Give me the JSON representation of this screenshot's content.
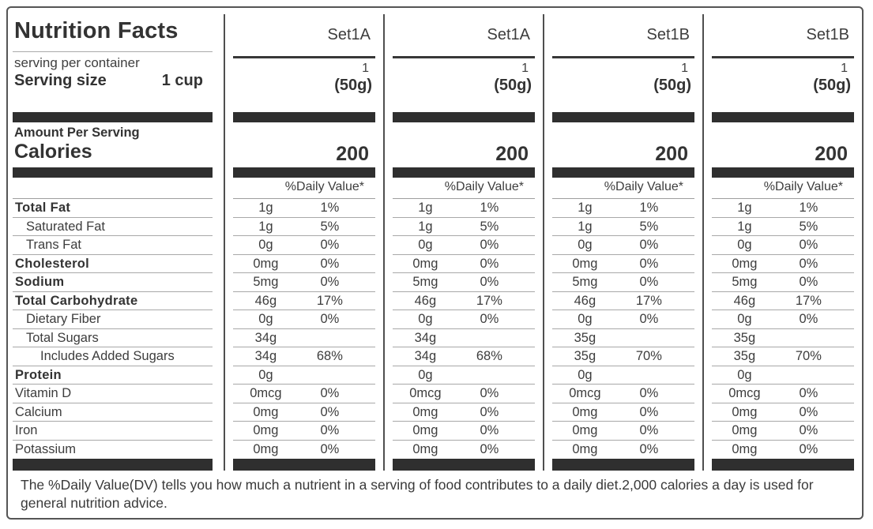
{
  "panel": {
    "title": "Nutrition Facts",
    "serving_per_container_label": "serving per container",
    "serving_size_label": "Serving size",
    "serving_size_value": "1 cup",
    "amount_per_serving_label": "Amount Per Serving",
    "calories_label": "Calories",
    "daily_value_header": "%Daily Value*",
    "footer": "The %Daily Value(DV) tells you how much a nutrient in a serving of food contributes to a daily diet.2,000 calories a day is used for general nutrition advice."
  },
  "colors": {
    "bar": "#2f2f2f",
    "rule": "#9e9e9e",
    "text": "#3a3a3a"
  },
  "nutrients": [
    {
      "label": "Total Fat",
      "emphasis": true,
      "indent": 0
    },
    {
      "label": "Saturated Fat",
      "emphasis": false,
      "indent": 1
    },
    {
      "label": "Trans Fat",
      "emphasis": false,
      "indent": 1
    },
    {
      "label": "Cholesterol",
      "emphasis": true,
      "indent": 0
    },
    {
      "label": "Sodium",
      "emphasis": true,
      "indent": 0
    },
    {
      "label": "Total Carbohydrate",
      "emphasis": true,
      "indent": 0
    },
    {
      "label": "Dietary Fiber",
      "emphasis": false,
      "indent": 1
    },
    {
      "label": "Total Sugars",
      "emphasis": false,
      "indent": 1
    },
    {
      "label": "Includes Added Sugars",
      "emphasis": false,
      "indent": 2
    },
    {
      "label": "Protein",
      "emphasis": true,
      "indent": 0
    },
    {
      "label": "Vitamin D",
      "emphasis": false,
      "indent": 0
    },
    {
      "label": "Calcium",
      "emphasis": false,
      "indent": 0
    },
    {
      "label": "Iron",
      "emphasis": false,
      "indent": 0
    },
    {
      "label": "Potassium",
      "emphasis": false,
      "indent": 0
    }
  ],
  "columns": [
    {
      "name": "Set1A",
      "servings_per_container": "1",
      "serving_size": "(50g)",
      "calories": "200",
      "daily_value_header": "%Daily Value*",
      "values": [
        [
          "1g",
          "1%"
        ],
        [
          "1g",
          "5%"
        ],
        [
          "0g",
          "0%"
        ],
        [
          "0mg",
          "0%"
        ],
        [
          "5mg",
          "0%"
        ],
        [
          "46g",
          "17%"
        ],
        [
          "0g",
          "0%"
        ],
        [
          "34g",
          ""
        ],
        [
          "34g",
          "68%"
        ],
        [
          "0g",
          ""
        ],
        [
          "0mcg",
          "0%"
        ],
        [
          "0mg",
          "0%"
        ],
        [
          "0mg",
          "0%"
        ],
        [
          "0mg",
          "0%"
        ]
      ]
    },
    {
      "name": "Set1A",
      "servings_per_container": "1",
      "serving_size": "(50g)",
      "calories": "200",
      "daily_value_header": "%Daily Value*",
      "values": [
        [
          "1g",
          "1%"
        ],
        [
          "1g",
          "5%"
        ],
        [
          "0g",
          "0%"
        ],
        [
          "0mg",
          "0%"
        ],
        [
          "5mg",
          "0%"
        ],
        [
          "46g",
          "17%"
        ],
        [
          "0g",
          "0%"
        ],
        [
          "34g",
          ""
        ],
        [
          "34g",
          "68%"
        ],
        [
          "0g",
          ""
        ],
        [
          "0mcg",
          "0%"
        ],
        [
          "0mg",
          "0%"
        ],
        [
          "0mg",
          "0%"
        ],
        [
          "0mg",
          "0%"
        ]
      ]
    },
    {
      "name": "Set1B",
      "servings_per_container": "1",
      "serving_size": "(50g)",
      "calories": "200",
      "daily_value_header": "%Daily Value*",
      "values": [
        [
          "1g",
          "1%"
        ],
        [
          "1g",
          "5%"
        ],
        [
          "0g",
          "0%"
        ],
        [
          "0mg",
          "0%"
        ],
        [
          "5mg",
          "0%"
        ],
        [
          "46g",
          "17%"
        ],
        [
          "0g",
          "0%"
        ],
        [
          "35g",
          ""
        ],
        [
          "35g",
          "70%"
        ],
        [
          "0g",
          ""
        ],
        [
          "0mcg",
          "0%"
        ],
        [
          "0mg",
          "0%"
        ],
        [
          "0mg",
          "0%"
        ],
        [
          "0mg",
          "0%"
        ]
      ]
    },
    {
      "name": "Set1B",
      "servings_per_container": "1",
      "serving_size": "(50g)",
      "calories": "200",
      "daily_value_header": "%Daily Value*",
      "values": [
        [
          "1g",
          "1%"
        ],
        [
          "1g",
          "5%"
        ],
        [
          "0g",
          "0%"
        ],
        [
          "0mg",
          "0%"
        ],
        [
          "5mg",
          "0%"
        ],
        [
          "46g",
          "17%"
        ],
        [
          "0g",
          "0%"
        ],
        [
          "35g",
          ""
        ],
        [
          "35g",
          "70%"
        ],
        [
          "0g",
          ""
        ],
        [
          "0mcg",
          "0%"
        ],
        [
          "0mg",
          "0%"
        ],
        [
          "0mg",
          "0%"
        ],
        [
          "0mg",
          "0%"
        ]
      ]
    }
  ]
}
